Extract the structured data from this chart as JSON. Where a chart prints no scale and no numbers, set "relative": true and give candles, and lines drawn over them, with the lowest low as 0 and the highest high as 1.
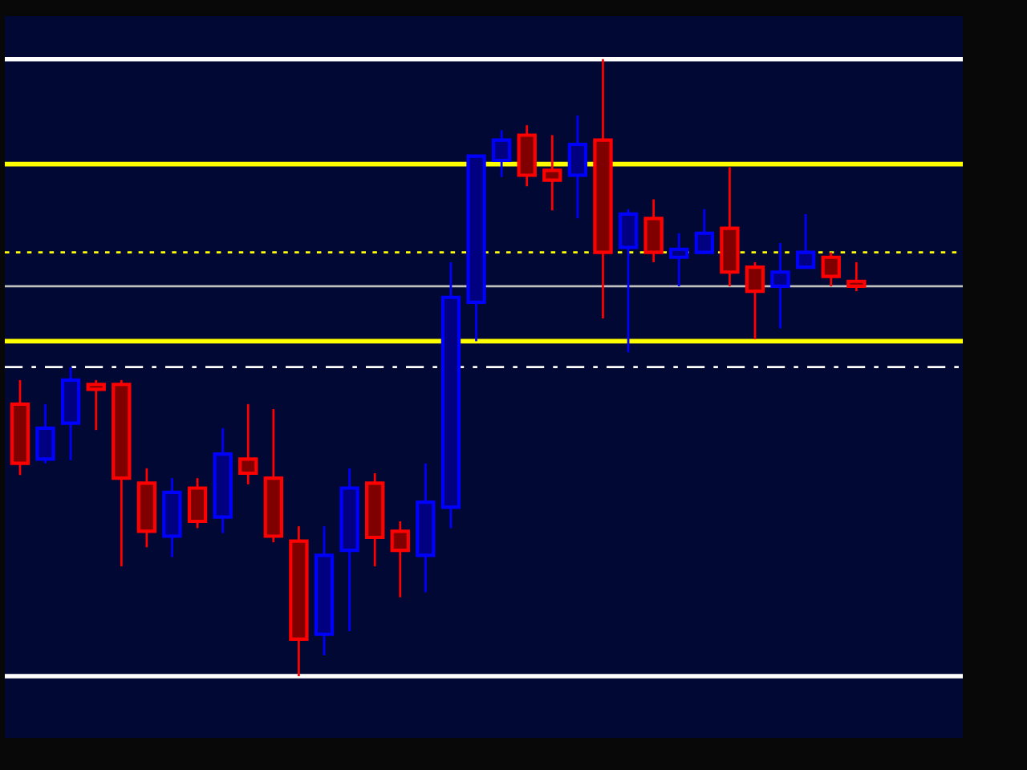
{
  "chart_data": {
    "type": "candlestick",
    "relative": true,
    "categories": [
      null,
      null,
      null,
      null,
      null,
      null,
      null,
      null,
      null,
      null,
      null,
      null,
      null,
      null,
      null,
      null,
      null,
      null,
      null,
      null,
      null,
      null,
      null,
      null,
      null,
      null,
      null,
      null,
      null,
      null,
      null,
      null,
      null,
      null
    ],
    "ohlc": [
      [
        0.441,
        0.48,
        0.326,
        0.345
      ],
      [
        0.352,
        0.441,
        0.345,
        0.402
      ],
      [
        0.41,
        0.501,
        0.35,
        0.48
      ],
      [
        0.473,
        0.48,
        0.399,
        0.465
      ],
      [
        0.473,
        0.48,
        0.178,
        0.321
      ],
      [
        0.313,
        0.337,
        0.209,
        0.235
      ],
      [
        0.227,
        0.321,
        0.193,
        0.298
      ],
      [
        0.305,
        0.321,
        0.24,
        0.251
      ],
      [
        0.258,
        0.402,
        0.232,
        0.36
      ],
      [
        0.352,
        0.441,
        0.311,
        0.329
      ],
      [
        0.321,
        0.433,
        0.217,
        0.227
      ],
      [
        0.219,
        0.243,
        0.0,
        0.06
      ],
      [
        0.068,
        0.243,
        0.034,
        0.196
      ],
      [
        0.204,
        0.337,
        0.073,
        0.305
      ],
      [
        0.313,
        0.329,
        0.178,
        0.225
      ],
      [
        0.235,
        0.251,
        0.128,
        0.204
      ],
      [
        0.196,
        0.345,
        0.136,
        0.282
      ],
      [
        0.274,
        0.671,
        0.24,
        0.614
      ],
      [
        0.606,
        0.843,
        0.543,
        0.843
      ],
      [
        0.836,
        0.885,
        0.809,
        0.869
      ],
      [
        0.877,
        0.893,
        0.794,
        0.812
      ],
      [
        0.82,
        0.877,
        0.755,
        0.804
      ],
      [
        0.812,
        0.909,
        0.742,
        0.862
      ],
      [
        0.869,
        1.0,
        0.58,
        0.687
      ],
      [
        0.695,
        0.757,
        0.525,
        0.749
      ],
      [
        0.742,
        0.773,
        0.671,
        0.687
      ],
      [
        0.679,
        0.718,
        0.632,
        0.692
      ],
      [
        0.687,
        0.757,
        0.687,
        0.718
      ],
      [
        0.726,
        0.825,
        0.632,
        0.655
      ],
      [
        0.663,
        0.671,
        0.546,
        0.624
      ],
      [
        0.632,
        0.702,
        0.564,
        0.655
      ],
      [
        0.663,
        0.749,
        0.663,
        0.687
      ],
      [
        0.679,
        0.687,
        0.632,
        0.648
      ],
      [
        0.64,
        0.671,
        0.624,
        0.632
      ]
    ],
    "colors": [
      "#ff0000",
      "#0000ff",
      "#0000ff",
      "#ff0000",
      "#ff0000",
      "#ff0000",
      "#0000ff",
      "#ff0000",
      "#0000ff",
      "#ff0000",
      "#ff0000",
      "#ff0000",
      "#0000ff",
      "#0000ff",
      "#ff0000",
      "#ff0000",
      "#0000ff",
      "#0000ff",
      "#0000ff",
      "#0000ff",
      "#ff0000",
      "#ff0000",
      "#0000ff",
      "#ff0000",
      "#0000ff",
      "#ff0000",
      "#0000ff",
      "#0000ff",
      "#ff0000",
      "#ff0000",
      "#0000ff",
      "#0000ff",
      "#ff0000",
      "#ff0000"
    ],
    "ref_lines": [
      {
        "axis": "y",
        "value": 1.0,
        "color": "#ffffff",
        "line_style": "solid"
      },
      {
        "axis": "y",
        "value": 0.0,
        "color": "#ffffff",
        "line_style": "solid"
      },
      {
        "axis": "y",
        "value": 0.632,
        "color": "#c0c0c0",
        "line_style": "solid"
      },
      {
        "axis": "y",
        "value": 0.501,
        "color": "#ffffff",
        "line_style": "dashdot"
      },
      {
        "axis": "y",
        "value": 0.83,
        "color": "#ffff00",
        "line_style": "solid"
      },
      {
        "axis": "y",
        "value": 0.687,
        "color": "#ffff00",
        "line_style": "dotted"
      },
      {
        "axis": "y",
        "value": 0.543,
        "color": "#ffff00",
        "line_style": "solid"
      }
    ]
  }
}
